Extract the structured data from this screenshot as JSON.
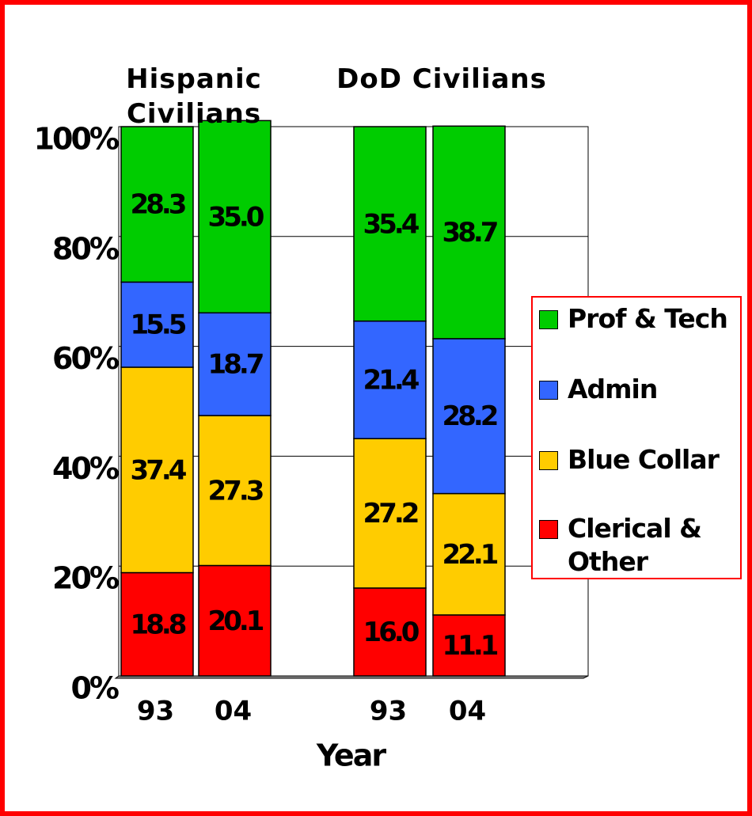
{
  "chart_data": {
    "type": "stacked_bar",
    "x_label": "Year",
    "groups": [
      "Hispanic Civilians",
      "DoD Civilians"
    ],
    "categories": [
      "93",
      "04",
      "93",
      "04"
    ],
    "series": [
      {
        "name": "Clerical & Other",
        "color": "#ff0000",
        "values": [
          18.8,
          20.1,
          16.0,
          11.1
        ],
        "value_labels": [
          "18.8",
          "20.1",
          "16.0",
          "11.1"
        ]
      },
      {
        "name": "Blue Collar",
        "color": "#ffcc00",
        "values": [
          37.4,
          27.3,
          27.2,
          22.1
        ],
        "value_labels": [
          "37.4",
          "27.3",
          "27.2",
          "22.1"
        ]
      },
      {
        "name": "Admin",
        "color": "#3366ff",
        "values": [
          15.5,
          18.7,
          21.4,
          28.2
        ],
        "value_labels": [
          "15.5",
          "18.7",
          "21.4",
          "28.2"
        ]
      },
      {
        "name": "Prof & Tech",
        "color": "#00cc00",
        "values": [
          28.3,
          35.0,
          35.4,
          38.7
        ],
        "value_labels": [
          "28.3",
          "35.0",
          "35.4",
          "38.7"
        ]
      }
    ],
    "ylim": [
      0,
      100
    ],
    "yticks": [
      {
        "value": 0,
        "label": "0%"
      },
      {
        "value": 20,
        "label": "20%"
      },
      {
        "value": 40,
        "label": "40%"
      },
      {
        "value": 60,
        "label": "60%"
      },
      {
        "value": 80,
        "label": "80%"
      },
      {
        "value": 100,
        "label": "100%"
      }
    ],
    "grid": true,
    "legend": "right"
  }
}
